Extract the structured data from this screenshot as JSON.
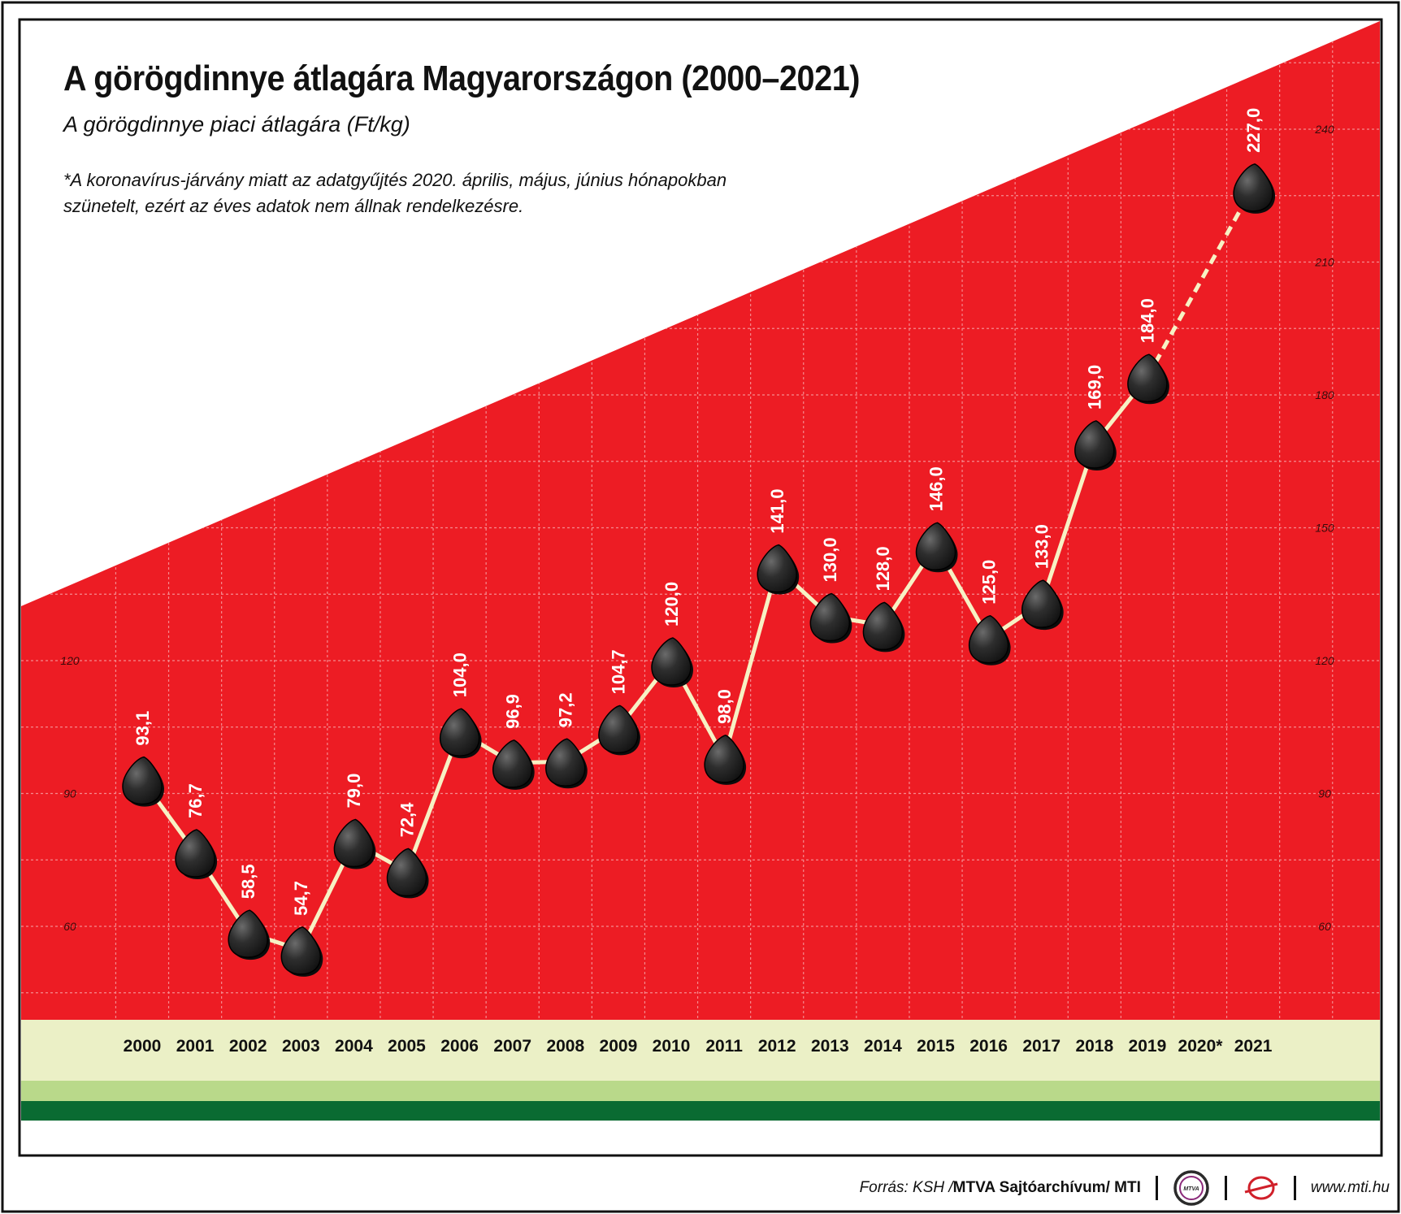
{
  "title": "A görögdinnye átlagára Magyarországon (2000–2021)",
  "subtitle": "A görögdinnye piaci átlagára (Ft/kg)",
  "note": "*A koronavírus-járvány miatt az adatgyűjtés 2020. április, május, június hónapokban szünetelt, ezért az éves adatok nem állnak rendelkezésre.",
  "footer": {
    "source_prefix": "Forrás: KSH / ",
    "source_org": "MTVA Sajtóarchívum",
    "source_suffix": " / MTI",
    "logo_text": "MTVA",
    "website": "www.mti.hu"
  },
  "colors": {
    "background_red": "#ed1c24",
    "line": "#f7f1c4",
    "seed": "#2a2a2a",
    "rind_light": "#ebf0c6",
    "rind_mid": "#b9d98a",
    "rind_dark": "#0a6b32"
  },
  "chart_data": {
    "type": "line",
    "title": "A görögdinnye átlagára Magyarországon (2000–2021)",
    "subtitle": "A görögdinnye piaci átlagára (Ft/kg)",
    "categories": [
      "2000",
      "2001",
      "2002",
      "2003",
      "2004",
      "2005",
      "2006",
      "2007",
      "2008",
      "2009",
      "2010",
      "2011",
      "2012",
      "2013",
      "2014",
      "2015",
      "2016",
      "2017",
      "2018",
      "2019",
      "2020*",
      "2021"
    ],
    "values": [
      93.1,
      76.7,
      58.5,
      54.7,
      79.0,
      72.4,
      104.0,
      96.9,
      97.2,
      104.7,
      120.0,
      98.0,
      141.0,
      130.0,
      128.0,
      146.0,
      125.0,
      133.0,
      169.0,
      184.0,
      null,
      227.0
    ],
    "value_labels": [
      "93,1",
      "76,7",
      "58,5",
      "54,7",
      "79,0",
      "72,4",
      "104,0",
      "96,9",
      "97,2",
      "104,7",
      "120,0",
      "98,0",
      "141,0",
      "130,0",
      "128,0",
      "146,0",
      "125,0",
      "133,0",
      "169,0",
      "184,0",
      "",
      "227,0"
    ],
    "missing_category": "2020*",
    "left_axis_ticks": [
      60,
      90,
      120
    ],
    "right_axis_ticks": [
      60,
      90,
      120,
      150,
      180,
      210,
      240
    ],
    "xlabel": "",
    "ylabel": "",
    "grid": true,
    "legend": "none"
  }
}
